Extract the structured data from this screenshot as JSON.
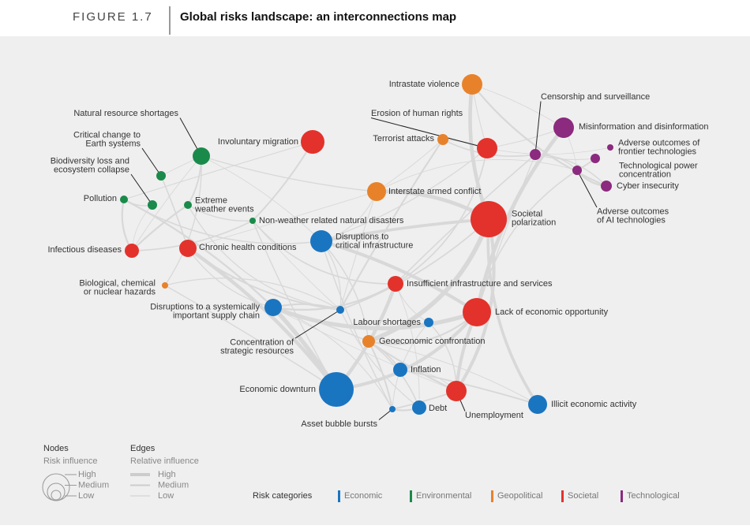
{
  "header": {
    "figure": "FIGURE 1.7",
    "title": "Global risks landscape: an interconnections map"
  },
  "categories": [
    {
      "name": "Economic",
      "color": "#1a75c1",
      "nodes": [
        {
          "label": [
            "Disruptions to",
            "critical infrastructure"
          ]
        },
        {
          "label": [
            "Disruptions to a systemically",
            "important supply chain"
          ]
        },
        {
          "label": [
            "Concentration of",
            "strategic resources"
          ]
        },
        {
          "label": [
            "Labour shortages"
          ]
        },
        {
          "label": [
            "Inflation"
          ]
        },
        {
          "label": [
            "Economic downturn"
          ]
        },
        {
          "label": [
            "Asset bubble bursts"
          ]
        },
        {
          "label": [
            "Debt"
          ]
        },
        {
          "label": [
            "Illicit economic activity"
          ]
        }
      ]
    },
    {
      "name": "Environmental",
      "color": "#1a8a4a",
      "nodes": [
        {
          "label": [
            "Natural resource shortages"
          ]
        },
        {
          "label": [
            "Critical change to",
            "Earth systems"
          ]
        },
        {
          "label": [
            "Biodiversity loss and",
            "ecosystem collapse"
          ]
        },
        {
          "label": [
            "Pollution"
          ]
        },
        {
          "label": [
            "Extreme",
            "weather events"
          ]
        },
        {
          "label": [
            "Non-weather related natural disasters"
          ]
        }
      ]
    },
    {
      "name": "Geopolitical",
      "color": "#e8822a",
      "nodes": [
        {
          "label": [
            "Intrastate violence"
          ]
        },
        {
          "label": [
            "Terrorist attacks"
          ]
        },
        {
          "label": [
            "Interstate armed conflict"
          ]
        },
        {
          "label": [
            "Biological, chemical",
            "or nuclear hazards"
          ]
        },
        {
          "label": [
            "Geoeconomic confrontation"
          ]
        }
      ]
    },
    {
      "name": "Societal",
      "color": "#e3322b",
      "nodes": [
        {
          "label": [
            "Erosion of human rights"
          ]
        },
        {
          "label": [
            "Involuntary migration"
          ]
        },
        {
          "label": [
            "Societal",
            "polarization"
          ]
        },
        {
          "label": [
            "Infectious diseases"
          ]
        },
        {
          "label": [
            "Chronic health conditions"
          ]
        },
        {
          "label": [
            "Insufficient infrastructure and services"
          ]
        },
        {
          "label": [
            "Lack of economic opportunity"
          ]
        },
        {
          "label": [
            "Unemployment"
          ]
        }
      ]
    },
    {
      "name": "Technological",
      "color": "#8b2a7e",
      "nodes": [
        {
          "label": [
            "Censorship and surveillance"
          ]
        },
        {
          "label": [
            "Misinformation and disinformation"
          ]
        },
        {
          "label": [
            "Adverse outcomes of",
            "frontier technologies"
          ]
        },
        {
          "label": [
            "Technological power",
            "concentration"
          ]
        },
        {
          "label": [
            "Cyber insecurity"
          ]
        },
        {
          "label": [
            "Adverse outcomes",
            "of AI technologies"
          ]
        }
      ]
    }
  ],
  "legend": {
    "nodes_title": "Nodes",
    "nodes_subtitle": "Risk influence",
    "edges_title": "Edges",
    "edges_subtitle": "Relative influence",
    "levels": [
      "High",
      "Medium",
      "Low"
    ],
    "categories_title": "Risk categories"
  }
}
